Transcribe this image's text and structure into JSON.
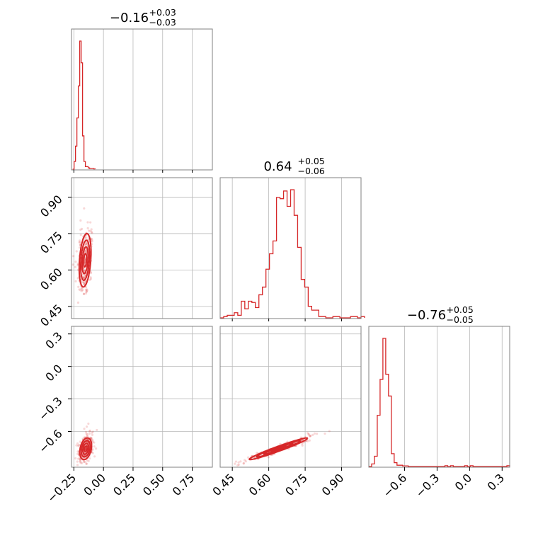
{
  "chart_data": {
    "type": "corner",
    "color": "#d62728",
    "parameters": [
      {
        "title": {
          "median": "−0.16",
          "plus": "+0.03",
          "minus": "−0.03"
        },
        "range": [
          -0.27,
          0.92
        ],
        "ticks": [
          -0.25,
          0.0,
          0.25,
          0.5,
          0.75
        ],
        "tick_labels": [
          "−0.25",
          "0.00",
          "0.25",
          "0.50",
          "0.75"
        ],
        "hist": {
          "bin_start": -0.26,
          "bin_width": 0.0119,
          "counts": [
            0,
            0.06,
            0.18,
            0.4,
            0.65,
            1.0,
            0.83,
            0.26,
            0.06,
            0.02,
            0.02,
            0.01,
            0.005,
            0.005,
            0.005,
            0.002
          ]
        }
      },
      {
        "title": {
          "median": "0.64",
          "plus": "+0.05",
          "minus": "−0.06"
        },
        "range": [
          0.4,
          0.98
        ],
        "ticks": [
          0.45,
          0.6,
          0.75,
          0.9
        ],
        "tick_labels": [
          "0.45",
          "0.60",
          "0.75",
          "0.90"
        ],
        "hist": {
          "bin_start": 0.4,
          "bin_width": 0.0145,
          "counts": [
            0,
            0.01,
            0.02,
            0.02,
            0.04,
            0.02,
            0.13,
            0.07,
            0.13,
            0.12,
            0.08,
            0.18,
            0.24,
            0.38,
            0.5,
            0.6,
            0.94,
            0.93,
            0.99,
            0.87,
            1.0,
            0.8,
            0.55,
            0.3,
            0.24,
            0.09,
            0.06,
            0.06,
            0.01,
            0.01,
            0,
            0,
            0.01,
            0.01,
            0,
            0,
            0,
            0.01,
            0.01,
            0,
            0.01
          ]
        }
      },
      {
        "title": {
          "median": "−0.76",
          "plus": "+0.05",
          "minus": "−0.05"
        },
        "range": [
          -0.93,
          0.37
        ],
        "ticks": [
          -0.6,
          -0.3,
          0.0,
          0.3
        ],
        "tick_labels": [
          "−0.6",
          "−0.3",
          "0.0",
          "0.3"
        ],
        "hist": {
          "bin_start": -0.93,
          "bin_width": 0.026,
          "counts": [
            0,
            0.02,
            0.08,
            0.4,
            0.68,
            1.0,
            0.72,
            0.55,
            0.1,
            0.03,
            0.01,
            0.01,
            0.005,
            0.005,
            0,
            0,
            0,
            0,
            0,
            0,
            0,
            0,
            0,
            0,
            0,
            0,
            0,
            0.006,
            0,
            0.006,
            0,
            0,
            0,
            0,
            0.006,
            0,
            0.006,
            0,
            0,
            0,
            0,
            0,
            0,
            0,
            0,
            0,
            0,
            0,
            0,
            0.006
          ]
        }
      }
    ],
    "pairs": [
      {
        "row": 1,
        "col": 0,
        "center": [
          -0.155,
          0.64
        ],
        "sigma": [
          0.025,
          0.055
        ],
        "rho": 0.3,
        "levels": [
          0.5,
          1.0,
          1.5,
          2.0
        ]
      },
      {
        "row": 2,
        "col": 0,
        "center": [
          -0.15,
          -0.76
        ],
        "sigma": [
          0.025,
          0.05
        ],
        "rho": 0.3,
        "levels": [
          0.5,
          1.0,
          1.5,
          2.0
        ]
      },
      {
        "row": 2,
        "col": 1,
        "center": [
          0.64,
          -0.76
        ],
        "sigma": [
          0.06,
          0.05
        ],
        "rho": 0.97,
        "levels": [
          0.5,
          1.0,
          1.5,
          2.0
        ]
      }
    ]
  }
}
